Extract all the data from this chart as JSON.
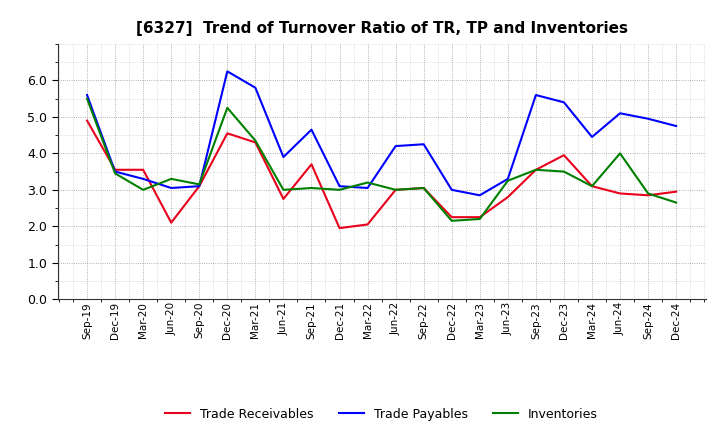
{
  "title": "[6327]  Trend of Turnover Ratio of TR, TP and Inventories",
  "x_labels": [
    "Sep-19",
    "Dec-19",
    "Mar-20",
    "Jun-20",
    "Sep-20",
    "Dec-20",
    "Mar-21",
    "Jun-21",
    "Sep-21",
    "Dec-21",
    "Mar-22",
    "Jun-22",
    "Sep-22",
    "Dec-22",
    "Mar-23",
    "Jun-23",
    "Sep-23",
    "Dec-23",
    "Mar-24",
    "Jun-24",
    "Sep-24",
    "Dec-24"
  ],
  "trade_receivables": [
    4.9,
    3.55,
    3.55,
    2.1,
    3.1,
    4.55,
    4.3,
    2.75,
    3.7,
    1.95,
    2.05,
    3.0,
    3.05,
    2.25,
    2.25,
    2.8,
    3.55,
    3.95,
    3.1,
    2.9,
    2.85,
    2.95
  ],
  "trade_payables": [
    5.6,
    3.5,
    3.3,
    3.05,
    3.1,
    6.25,
    5.8,
    3.9,
    4.65,
    3.1,
    3.05,
    4.2,
    4.25,
    3.0,
    2.85,
    3.3,
    5.6,
    5.4,
    4.45,
    5.1,
    4.95,
    4.75
  ],
  "inventories": [
    5.5,
    3.45,
    3.0,
    3.3,
    3.15,
    5.25,
    4.35,
    3.0,
    3.05,
    3.0,
    3.2,
    3.0,
    3.05,
    2.15,
    2.2,
    3.25,
    3.55,
    3.5,
    3.1,
    4.0,
    2.9,
    2.65
  ],
  "colors": {
    "trade_receivables": "#e8001c",
    "trade_payables": "#0000ff",
    "inventories": "#008000"
  },
  "ylim": [
    0.0,
    7.0
  ],
  "yticks": [
    0.0,
    1.0,
    2.0,
    3.0,
    4.0,
    5.0,
    6.0
  ],
  "background_color": "#ffffff",
  "plot_bg_color": "#ffffff"
}
